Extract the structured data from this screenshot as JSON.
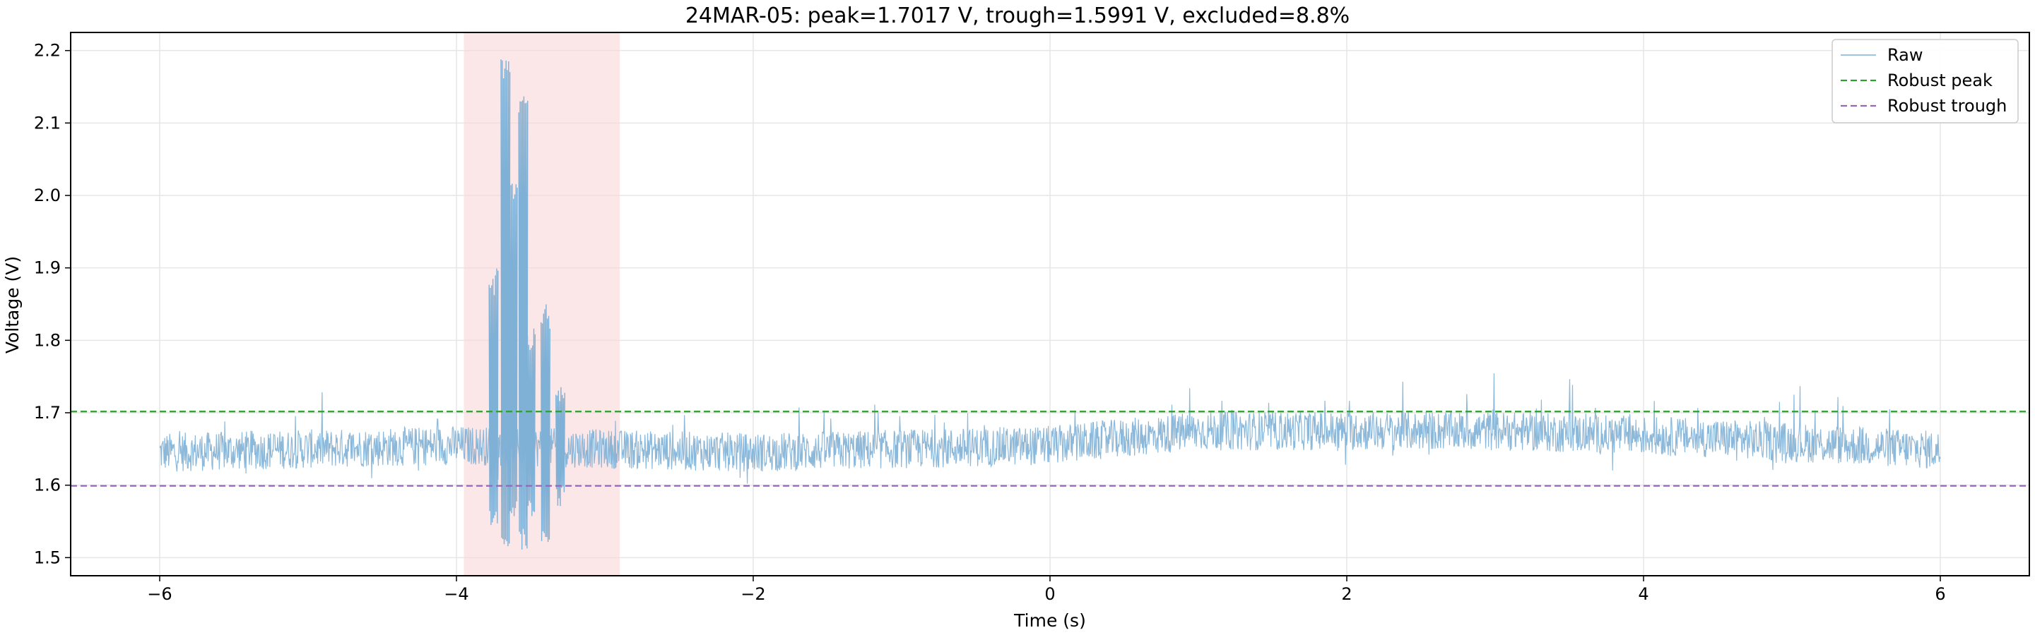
{
  "chart_data": {
    "type": "line",
    "title": "24MAR-05: peak=1.7017 V, trough=1.5991 V, excluded=8.8%",
    "xlabel": "Time (s)",
    "ylabel": "Voltage (V)",
    "xlim": [
      -6.6,
      6.6
    ],
    "ylim": [
      1.475,
      2.225
    ],
    "xticks": [
      -6,
      -4,
      -2,
      0,
      2,
      4,
      6
    ],
    "xtick_labels": [
      "−6",
      "−4",
      "−2",
      "0",
      "2",
      "4",
      "6"
    ],
    "yticks": [
      1.5,
      1.6,
      1.7,
      1.8,
      1.9,
      2.0,
      2.1,
      2.2
    ],
    "ytick_labels": [
      "1.5",
      "1.6",
      "1.7",
      "1.8",
      "1.9",
      "2.0",
      "2.1",
      "2.2"
    ],
    "grid": true,
    "legend_position": "top-right",
    "excluded_region": {
      "x_start": -3.95,
      "x_end": -2.9,
      "color": "#f8d7d7"
    },
    "series": [
      {
        "name": "Raw",
        "style": "solid",
        "color": "#7fb0d5",
        "x_range": [
          -6,
          6
        ],
        "baseline": [
          {
            "x": -6.0,
            "y": 1.645
          },
          {
            "x": -4.0,
            "y": 1.655
          },
          {
            "x": -2.0,
            "y": 1.645
          },
          {
            "x": 0.0,
            "y": 1.655
          },
          {
            "x": 1.0,
            "y": 1.675
          },
          {
            "x": 3.0,
            "y": 1.675
          },
          {
            "x": 4.5,
            "y": 1.665
          },
          {
            "x": 6.0,
            "y": 1.648
          }
        ],
        "noise_band": 0.027,
        "spikes": [
          {
            "x": -3.75,
            "ymax": 1.9,
            "ymin": 1.545
          },
          {
            "x": -3.67,
            "ymax": 2.19,
            "ymin": 1.515
          },
          {
            "x": -3.62,
            "ymax": 2.02,
            "ymin": 1.55
          },
          {
            "x": -3.55,
            "ymax": 2.14,
            "ymin": 1.51
          },
          {
            "x": -3.5,
            "ymax": 1.82,
            "ymin": 1.55
          },
          {
            "x": -3.4,
            "ymax": 1.85,
            "ymin": 1.52
          },
          {
            "x": -3.3,
            "ymax": 1.75,
            "ymin": 1.57
          }
        ]
      },
      {
        "name": "Robust peak",
        "style": "dashed",
        "color": "#2ca02c",
        "y": 1.7017
      },
      {
        "name": "Robust trough",
        "style": "dashed",
        "color": "#9467bd",
        "y": 1.5991
      }
    ]
  }
}
